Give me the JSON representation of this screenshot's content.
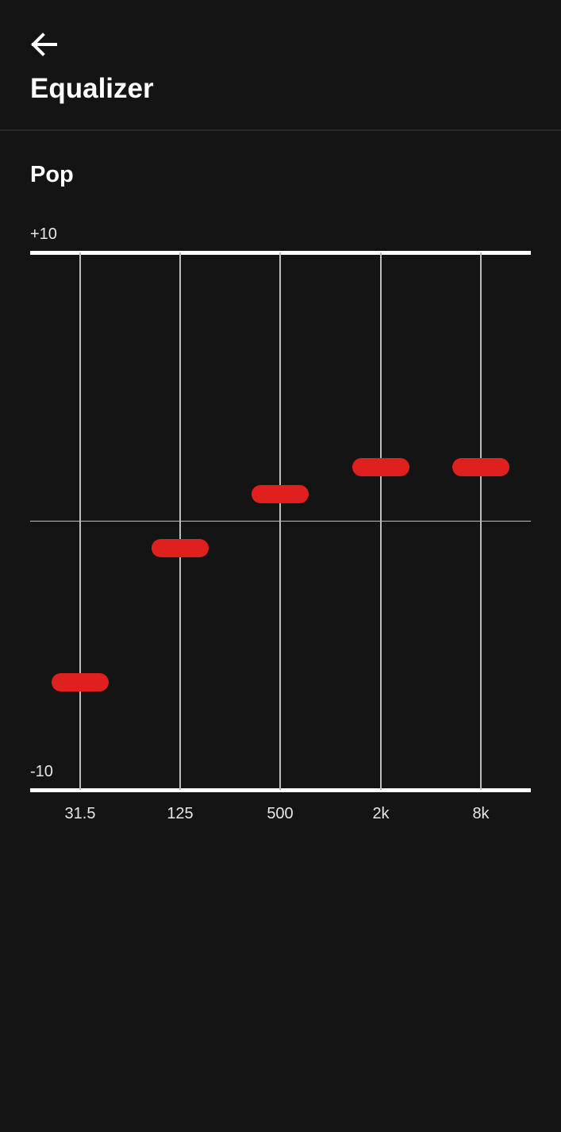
{
  "header": {
    "back_icon": "arrow-left-icon",
    "title": "Equalizer"
  },
  "preset": {
    "name": "Pop"
  },
  "colors": {
    "background": "#141414",
    "handle": "#e0201f",
    "grid": "#bdbdbd",
    "bound_line": "#ffffff"
  },
  "chart_data": {
    "type": "equalizer",
    "ylim": [
      -10,
      10
    ],
    "y_max_label": "+10",
    "y_min_label": "-10",
    "categories": [
      "31.5",
      "125",
      "500",
      "2k",
      "8k"
    ],
    "values": [
      -6,
      -1,
      1,
      2,
      2
    ]
  }
}
